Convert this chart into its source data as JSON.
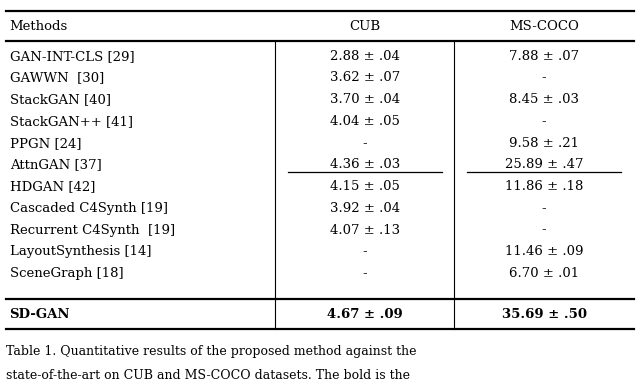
{
  "title": "Table 1. Quantitative results of the proposed method against the",
  "subtitle": "state-of-the-art on CUB and MS-COCO datasets. The bold is the",
  "col_headers": [
    "Methods",
    "CUB",
    "MS-COCO"
  ],
  "rows": [
    [
      "GAN-INT-CLS [29]",
      "2.88 ± .04",
      "7.88 ± .07"
    ],
    [
      "GAWWN  [30]",
      "3.62 ± .07",
      "-"
    ],
    [
      "StackGAN [40]",
      "3.70 ± .04",
      "8.45 ± .03"
    ],
    [
      "StackGAN++ [41]",
      "4.04 ± .05",
      "-"
    ],
    [
      "PPGN [24]",
      "-",
      "9.58 ± .21"
    ],
    [
      "AttnGAN [37]",
      "4.36 ± .03",
      "25.89 ± .47"
    ],
    [
      "HDGAN [42]",
      "4.15 ± .05",
      "11.86 ± .18"
    ],
    [
      "Cascaded C4Synth [19]",
      "3.92 ± .04",
      "-"
    ],
    [
      "Recurrent C4Synth  [19]",
      "4.07 ± .13",
      "-"
    ],
    [
      "LayoutSynthesis [14]",
      "-",
      "11.46 ± .09"
    ],
    [
      "SceneGraph [18]",
      "-",
      "6.70 ± .01"
    ]
  ],
  "last_row": [
    "SD-GAN",
    "4.67 ± .09",
    "35.69 ± .50"
  ],
  "bg_color": "#ffffff",
  "text_color": "#000000",
  "font_size": 9.5
}
